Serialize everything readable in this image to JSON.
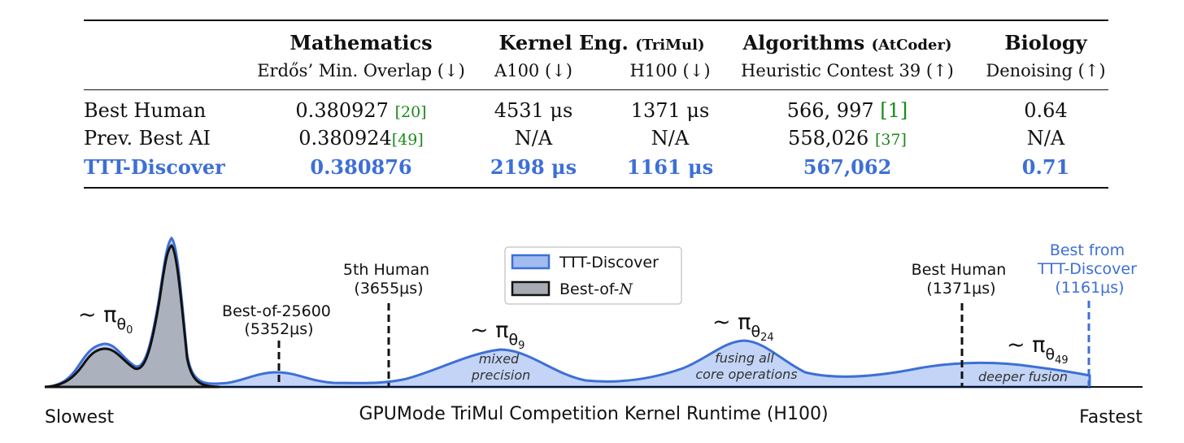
{
  "table": {
    "headers": [
      {
        "main": "Mathematics",
        "sub": ""
      },
      {
        "main": "Kernel Eng.",
        "sub": "(TriMul)"
      },
      {
        "main": "Algorithms",
        "sub": "(AtCoder)"
      },
      {
        "main": "Biology",
        "sub": ""
      }
    ],
    "subheaders": [
      "Erdős’ Min. Overlap (↓)",
      "A100 (↓)",
      "H100 (↓)",
      "Heuristic Contest 39 (↑)",
      "Denoising (↑)"
    ],
    "rows": [
      {
        "label": "Best Human",
        "cells": [
          {
            "value": "0.380927",
            "cite": "[20]"
          },
          {
            "value": "4531 μs",
            "cite": ""
          },
          {
            "value": "1371 μs",
            "cite": ""
          },
          {
            "value": "566, 997",
            "cite": "[1]"
          },
          {
            "value": "0.64",
            "cite": ""
          }
        ]
      },
      {
        "label": "Prev. Best AI",
        "cells": [
          {
            "value": "0.380924",
            "cite": "[49]"
          },
          {
            "value": "N/A",
            "cite": ""
          },
          {
            "value": "N/A",
            "cite": ""
          },
          {
            "value": "558,026",
            "cite": "[37]"
          },
          {
            "value": "N/A",
            "cite": ""
          }
        ]
      },
      {
        "label": "TTT-Discover",
        "cells": [
          {
            "value": "0.380876",
            "cite": ""
          },
          {
            "value": "2198 μs",
            "cite": ""
          },
          {
            "value": "1161 μs",
            "cite": ""
          },
          {
            "value": "567,062",
            "cite": ""
          },
          {
            "value": "0.71",
            "cite": ""
          }
        ]
      }
    ]
  },
  "figure": {
    "xlabel": "GPUMode TriMul Competition Kernel Runtime (H100)",
    "left_end": "Slowest",
    "right_end": "Fastest",
    "legend": [
      {
        "name": "TTT-Discover",
        "fill": "#7aa0ea",
        "stroke": "#3d6fd6"
      },
      {
        "name_prefix": "Best-of-",
        "name_var": "N",
        "fill": "#a7acb4",
        "stroke": "#111111"
      }
    ],
    "markers": [
      {
        "line1": "Best-of-25600",
        "line2": "(5352μs)"
      },
      {
        "line1": "5th Human",
        "line2": "(3655μs)"
      },
      {
        "line1": "Best Human",
        "line2": "(1371μs)"
      },
      {
        "line1": "Best from",
        "line2": "TTT-Discover",
        "line3": "(1161μs)"
      }
    ],
    "policies": [
      {
        "symbol": "~ π",
        "sub": "θ",
        "subsub": "0"
      },
      {
        "symbol": "~ π",
        "sub": "θ",
        "subsub": "9"
      },
      {
        "symbol": "~ π",
        "sub": "θ",
        "subsub": "24"
      },
      {
        "symbol": "~ π",
        "sub": "θ",
        "subsub": "49"
      }
    ],
    "annotations": [
      {
        "line1": "mixed",
        "line2": "precision"
      },
      {
        "line1": "fusing all",
        "line2": "core operations"
      },
      {
        "line1": "deeper fusion"
      }
    ],
    "colors": {
      "accent": "#3d6fd6",
      "ttt_fill": "#7aa0ea",
      "bon_fill": "#a7acb4",
      "cite": "#1a8a1a"
    }
  }
}
